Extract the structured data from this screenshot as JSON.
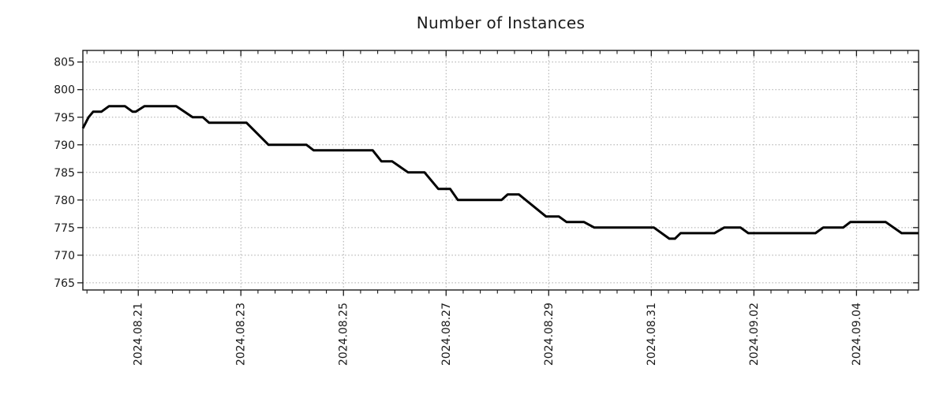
{
  "page": {
    "background": "#ffffff"
  },
  "chart_data": {
    "type": "line",
    "title": "Number of Instances",
    "x_axis": {
      "kind": "time",
      "day_zero_date": "2024-08-20",
      "range_days": [
        -0.08,
        16.21
      ],
      "major_ticks": [
        {
          "day": 1,
          "label": "2024.08.21"
        },
        {
          "day": 3,
          "label": "2024.08.23"
        },
        {
          "day": 5,
          "label": "2024.08.25"
        },
        {
          "day": 7,
          "label": "2024.08.27"
        },
        {
          "day": 9,
          "label": "2024.08.29"
        },
        {
          "day": 11,
          "label": "2024.08.31"
        },
        {
          "day": 13,
          "label": "2024.09.02"
        },
        {
          "day": 15,
          "label": "2024.09.04"
        }
      ],
      "minor_tick_interval_days": 0.3333,
      "grid_on_major": true
    },
    "y_axis": {
      "range": [
        763.7,
        807.1
      ],
      "major_ticks": [
        805,
        800,
        795,
        790,
        785,
        780,
        775,
        770,
        765
      ],
      "grid_on_major": true
    },
    "series": [
      {
        "name": "instances",
        "color": "#000000",
        "width": 3,
        "points_day_value": [
          [
            -0.08,
            793
          ],
          [
            0.03,
            795
          ],
          [
            0.12,
            796
          ],
          [
            0.28,
            796
          ],
          [
            0.43,
            797
          ],
          [
            0.74,
            797
          ],
          [
            0.89,
            796
          ],
          [
            0.95,
            796
          ],
          [
            1.12,
            797
          ],
          [
            1.74,
            797
          ],
          [
            2.06,
            795
          ],
          [
            2.26,
            795
          ],
          [
            2.38,
            794
          ],
          [
            3.11,
            794
          ],
          [
            3.54,
            790
          ],
          [
            4.28,
            790
          ],
          [
            4.42,
            789
          ],
          [
            5.57,
            789
          ],
          [
            5.74,
            787
          ],
          [
            5.95,
            787
          ],
          [
            6.26,
            785
          ],
          [
            6.58,
            785
          ],
          [
            6.85,
            782
          ],
          [
            7.08,
            782
          ],
          [
            7.23,
            780
          ],
          [
            8.08,
            780
          ],
          [
            8.2,
            781
          ],
          [
            8.42,
            781
          ],
          [
            8.95,
            777
          ],
          [
            9.2,
            777
          ],
          [
            9.35,
            776
          ],
          [
            9.69,
            776
          ],
          [
            9.89,
            775
          ],
          [
            11.05,
            775
          ],
          [
            11.35,
            773
          ],
          [
            11.46,
            773
          ],
          [
            11.57,
            774
          ],
          [
            12.23,
            774
          ],
          [
            12.42,
            775
          ],
          [
            12.74,
            775
          ],
          [
            12.89,
            774
          ],
          [
            14.2,
            774
          ],
          [
            14.35,
            775
          ],
          [
            14.74,
            775
          ],
          [
            14.88,
            776
          ],
          [
            15.57,
            776
          ],
          [
            15.88,
            774
          ],
          [
            16.21,
            774
          ]
        ]
      }
    ],
    "style": {
      "grid_color": "#a8a8a8",
      "axis_color": "#1a1a1a",
      "text_color": "#1a1a1a",
      "line_color": "#000000",
      "background": "#ffffff"
    },
    "legend": null
  }
}
